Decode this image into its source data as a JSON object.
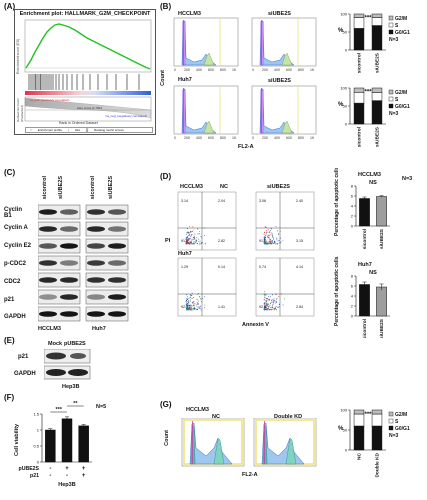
{
  "panels": {
    "A": {
      "letter": "(A)",
      "title": "Enrichment plot: HALLMARK_G2M_CHECKPOINT",
      "ylabel_top": "Enrichment score (ES)",
      "ylabel_bottom": "Ranked list metric (PreRanked)",
      "annotation_pos": "'na_pos' (positively correlated)",
      "annotation_zero": "Zero cross at 7664",
      "annotation_neg": "'na_neg' (negatively correlated)",
      "xlabel": "Rank in Ordered Dataset",
      "legend": [
        "Enrichment profile",
        "Hits",
        "Ranking metric scores"
      ],
      "colors": {
        "profile": "#22c222",
        "hits": "#111111",
        "heat_pos": "#e0344a",
        "heat_neg": "#2f5fd6"
      }
    },
    "B": {
      "letter": "(B)",
      "cell_lines": [
        "HCCLM3",
        "Huh7"
      ],
      "conditions": [
        "NC",
        "siUBE2S"
      ],
      "ylabel": "Count",
      "xlabel": "FL2-A",
      "bar_ylabel": "%",
      "significance": "***",
      "n_label": "N=3",
      "legend": [
        "G2/M",
        "S",
        "G0/G1"
      ]
    },
    "C": {
      "letter": "(C)",
      "lanes": [
        "sicontrol",
        "siUBE2S",
        "sicontrol",
        "siUBE2S"
      ],
      "proteins": [
        "Cyclin B1",
        "Cyclin A",
        "Cyclin E2",
        "p-CDC2",
        "CDC2",
        "p21",
        "GAPDH"
      ],
      "cell_lines": [
        "HCCLM3",
        "Huh7"
      ]
    },
    "D": {
      "letter": "(D)",
      "cell_lines": [
        "HCCLM3",
        "Huh7"
      ],
      "conditions": [
        "NC",
        "siUBE2S"
      ],
      "ylabel": "PI",
      "xlabel": "Annexin V",
      "quadrants": {
        "HCCLM3_NC": [
          "3.14",
          "2.04",
          "91.3",
          "2.82"
        ],
        "HCCLM3_siUBE2S": [
          "3.06",
          "2.40",
          "91.0",
          "3.15"
        ],
        "Huh7_NC": [
          "1.29",
          "0.14",
          "92.7",
          "1.41"
        ],
        "Huh7_siUBE2S": [
          "0.74",
          "4.14",
          "92.6",
          "2.84"
        ]
      },
      "bar_ylabel": "Percentage of apoptotic cells",
      "significance": "NS",
      "n_label": "N=3",
      "categories": [
        "sicontrol",
        "siUBE2S"
      ]
    },
    "E": {
      "letter": "(E)",
      "lanes": [
        "Mock",
        "pUBE2S"
      ],
      "proteins": [
        "p21",
        "GAPDH"
      ],
      "cell_line": "Hep3B"
    },
    "F": {
      "letter": "(F)",
      "ylabel": "Cell viability",
      "significance": [
        "***",
        "**"
      ],
      "n_label": "N=5",
      "row_labels": [
        "pUBE2S",
        "p21"
      ],
      "row_values": [
        [
          "-",
          "+",
          "+"
        ],
        [
          "-",
          "-",
          "+"
        ]
      ],
      "cell_line": "Hep3B"
    },
    "G": {
      "letter": "(G)",
      "cell_line": "HCCLM3",
      "conditions": [
        "NC",
        "Double KD"
      ],
      "ylabel": "Count",
      "xlabel": "FL2-A",
      "bar_ylabel": "%",
      "significance": "***",
      "n_label": "N=3",
      "legend": [
        "G2/M",
        "S",
        "G0/G1"
      ]
    }
  },
  "chart_data": [
    {
      "type": "bar",
      "panel": "B-HCCLM3",
      "categories": [
        "sicontrol",
        "siUBE2S"
      ],
      "series": [
        {
          "name": "G0/G1",
          "values": [
            60,
            68
          ]
        },
        {
          "name": "S",
          "values": [
            30,
            22
          ]
        },
        {
          "name": "G2/M",
          "values": [
            10,
            10
          ]
        }
      ],
      "ylabel": "%",
      "ylim": [
        0,
        100
      ],
      "yticks": [
        0,
        50,
        100
      ],
      "annotation": "***"
    },
    {
      "type": "bar",
      "panel": "B-Huh7",
      "categories": [
        "sicontrol",
        "siUBE2S"
      ],
      "series": [
        {
          "name": "G0/G1",
          "values": [
            58,
            65
          ]
        },
        {
          "name": "S",
          "values": [
            30,
            22
          ]
        },
        {
          "name": "G2/M",
          "values": [
            12,
            13
          ]
        }
      ],
      "ylabel": "%",
      "ylim": [
        0,
        100
      ],
      "yticks": [
        0,
        50,
        100
      ],
      "annotation": "***"
    },
    {
      "type": "bar",
      "panel": "D-HCCLM3",
      "title": "HCCLM3",
      "categories": [
        "sicontrol",
        "siUBE2S"
      ],
      "values": [
        5.5,
        5.9
      ],
      "errors": [
        0.3,
        0.15
      ],
      "ylabel": "Percentage of apoptotic cells",
      "ylim": [
        0,
        8
      ],
      "yticks": [
        0,
        2,
        4,
        6,
        8
      ],
      "annotation": "NS"
    },
    {
      "type": "bar",
      "panel": "D-Huh7",
      "title": "Huh7",
      "categories": [
        "sicontrol",
        "siUBE2S"
      ],
      "values": [
        6.3,
        5.8
      ],
      "errors": [
        0.5,
        0.6
      ],
      "ylabel": "Percentage of apoptotic cells",
      "ylim": [
        0,
        8
      ],
      "yticks": [
        0,
        2,
        4,
        6,
        8
      ],
      "annotation": "NS"
    },
    {
      "type": "bar",
      "panel": "F",
      "categories": [
        "1",
        "2",
        "3"
      ],
      "values": [
        1.0,
        1.35,
        1.13
      ],
      "errors": [
        0.04,
        0.06,
        0.04
      ],
      "ylabel": "Cell viability",
      "ylim": [
        0,
        1.5
      ],
      "yticks": [
        0.0,
        0.5,
        1.0,
        1.5
      ]
    },
    {
      "type": "bar",
      "panel": "G",
      "categories": [
        "NC",
        "Double KD"
      ],
      "series": [
        {
          "name": "G0/G1",
          "values": [
            60,
            60
          ]
        },
        {
          "name": "S",
          "values": [
            30,
            30
          ]
        },
        {
          "name": "G2/M",
          "values": [
            10,
            10
          ]
        }
      ],
      "ylabel": "%",
      "ylim": [
        0,
        100
      ],
      "yticks": [
        0,
        50,
        100
      ],
      "annotation": "***"
    }
  ]
}
